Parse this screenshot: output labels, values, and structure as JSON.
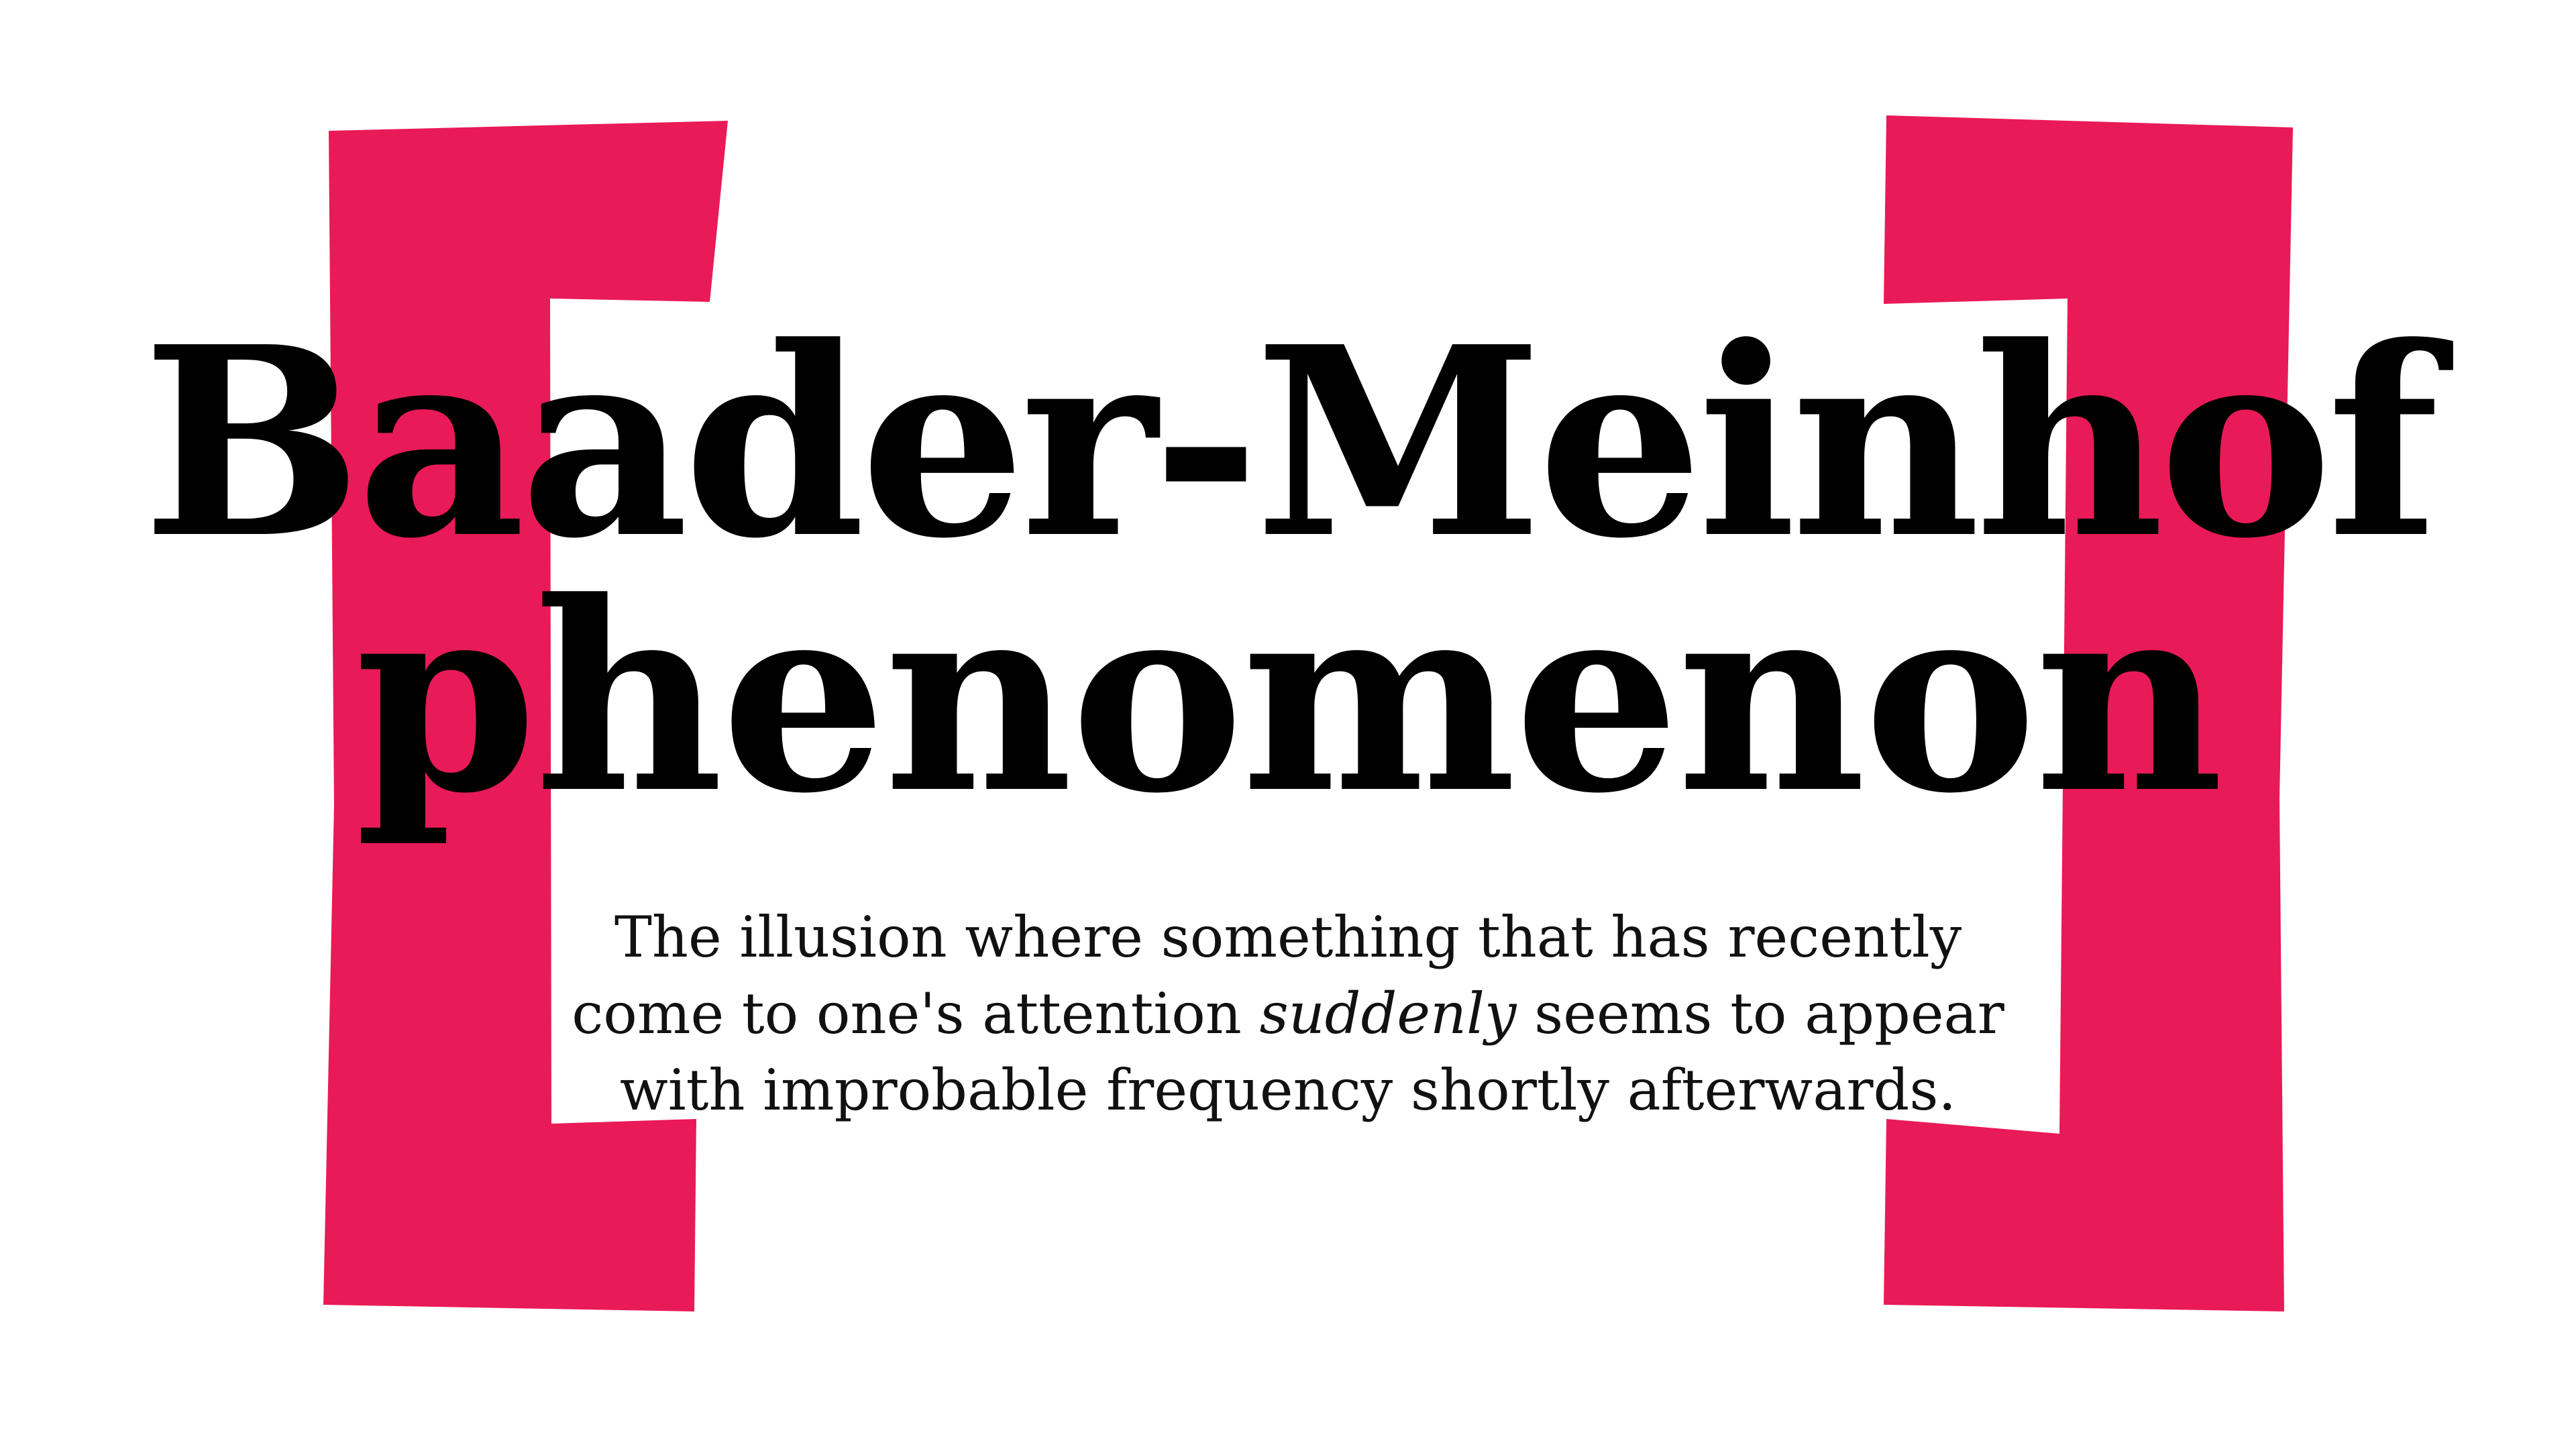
{
  "headline": {
    "line1": "Baader-Meinhof",
    "line2": "phenomenon"
  },
  "description": {
    "before_emphasis": "The illusion where something that has recently come to one's attention ",
    "emphasis": "suddenly",
    "after_emphasis": " seems to appear with improbable frequency shortly afterwards."
  },
  "colors": {
    "bracket": "#e91a58",
    "text": "#000000",
    "background": "#ffffff"
  }
}
